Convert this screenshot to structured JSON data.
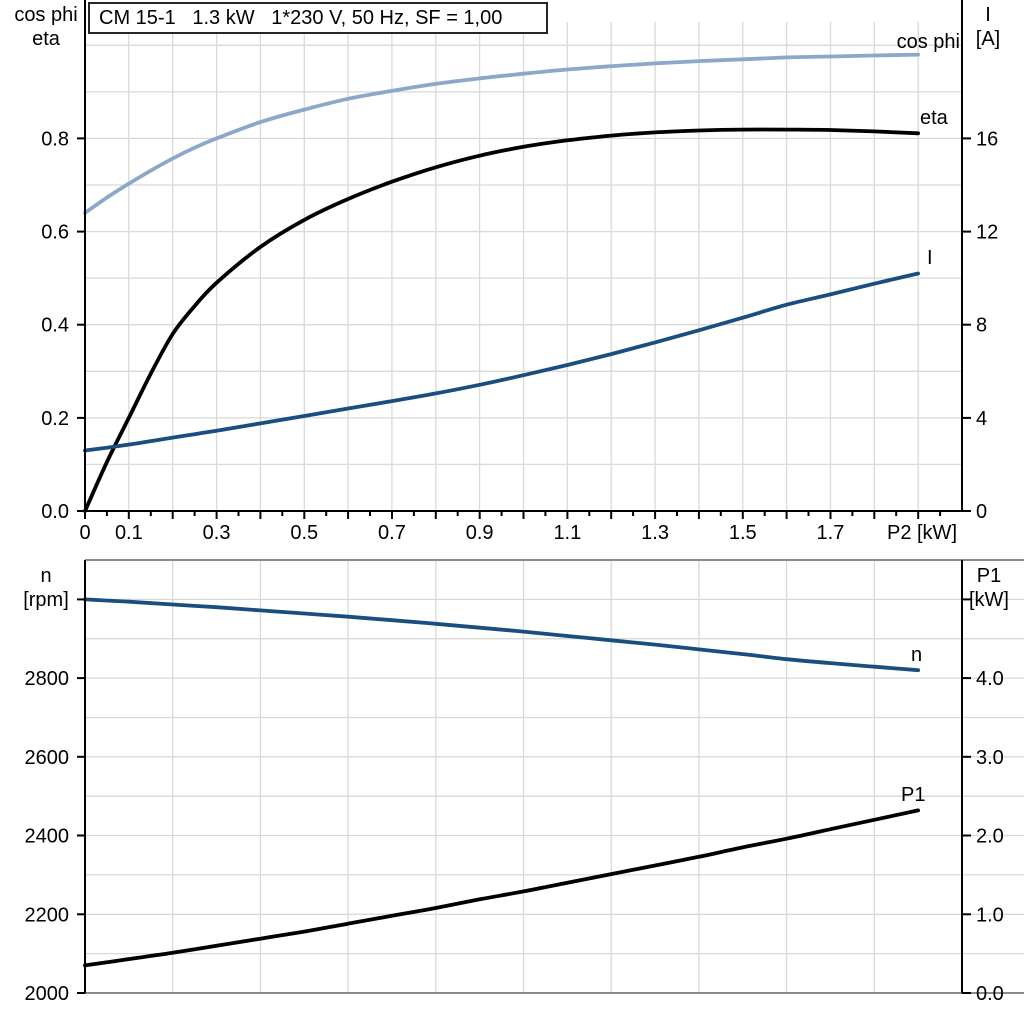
{
  "header": {
    "title": "CM 15-1   1.3 kW   1*230 V, 50 Hz, SF = 1,00"
  },
  "colors": {
    "light_blue": "#8CA8C8",
    "dark_blue": "#1B4E80",
    "black": "#000000",
    "grid": "#D9D9D9",
    "frame": "#8A8A8A"
  },
  "chart_data": [
    {
      "id": "motor-electrical",
      "type": "line",
      "title": "",
      "x_axis": {
        "label": "P2 [kW]",
        "range": [
          0,
          2.0
        ],
        "tick_values": [
          0,
          0.1,
          0.3,
          0.5,
          0.7,
          0.9,
          1.1,
          1.3,
          1.5,
          1.7
        ],
        "tick_labels": [
          "0",
          "0.1",
          "0.3",
          "0.5",
          "0.7",
          "0.9",
          "1.1",
          "1.3",
          "1.5",
          "1.7"
        ],
        "minor_tick_step": 0.05,
        "grid_step": 0.1
      },
      "y_left": {
        "label_lines": [
          "cos phi",
          "eta"
        ],
        "range": [
          0,
          1.05
        ],
        "tick_values": [
          0,
          0.2,
          0.4,
          0.6,
          0.8
        ],
        "tick_labels": [
          "0.0",
          "0.2",
          "0.4",
          "0.6",
          "0.8"
        ],
        "grid_step": 0.1
      },
      "y_right": {
        "label_lines": [
          "I",
          "[A]"
        ],
        "range": [
          0,
          21
        ],
        "tick_values": [
          0,
          4,
          8,
          12,
          16
        ],
        "tick_labels": [
          "0",
          "4",
          "8",
          "12",
          "16"
        ],
        "grid_step": 2
      },
      "x": [
        0,
        0.05,
        0.1,
        0.15,
        0.2,
        0.25,
        0.3,
        0.4,
        0.5,
        0.6,
        0.7,
        0.8,
        0.9,
        1.0,
        1.1,
        1.2,
        1.3,
        1.4,
        1.5,
        1.6,
        1.7,
        1.8,
        1.9
      ],
      "series": [
        {
          "name": "cos phi",
          "axis": "left",
          "color_key": "light_blue",
          "values": [
            0.64,
            0.673,
            0.703,
            0.731,
            0.757,
            0.78,
            0.8,
            0.835,
            0.862,
            0.885,
            0.902,
            0.917,
            0.929,
            0.939,
            0.948,
            0.955,
            0.961,
            0.966,
            0.97,
            0.974,
            0.976,
            0.978,
            0.98
          ]
        },
        {
          "name": "eta",
          "axis": "left",
          "color_key": "black",
          "values": [
            0.0,
            0.105,
            0.2,
            0.295,
            0.38,
            0.44,
            0.49,
            0.567,
            0.625,
            0.67,
            0.707,
            0.738,
            0.763,
            0.782,
            0.796,
            0.806,
            0.813,
            0.817,
            0.819,
            0.819,
            0.818,
            0.815,
            0.811
          ]
        },
        {
          "name": "I",
          "axis": "right",
          "color_key": "dark_blue",
          "values": [
            2.6,
            2.72,
            2.85,
            3.0,
            3.15,
            3.3,
            3.45,
            3.76,
            4.08,
            4.4,
            4.72,
            5.05,
            5.42,
            5.83,
            6.27,
            6.74,
            7.24,
            7.76,
            8.3,
            8.86,
            9.3,
            9.76,
            10.2
          ]
        }
      ]
    },
    {
      "id": "motor-mechanical",
      "type": "line",
      "title": "",
      "x_axis": {
        "label": "",
        "range": [
          0,
          2.0
        ],
        "tick_values": [],
        "tick_labels": [],
        "grid_step": 0.2
      },
      "y_left": {
        "label_lines": [
          "n",
          "[rpm]"
        ],
        "range": [
          2000,
          3100
        ],
        "tick_values": [
          2000,
          2200,
          2400,
          2600,
          2800,
          3000
        ],
        "tick_labels": [
          "2000",
          "2200",
          "2400",
          "2600",
          "2800",
          ""
        ],
        "grid_step": 100
      },
      "y_right": {
        "label_lines": [
          "P1",
          "[kW]"
        ],
        "range": [
          0,
          5.5
        ],
        "tick_values": [
          0,
          1,
          2,
          3,
          4,
          5
        ],
        "tick_labels": [
          "0.0",
          "1.0",
          "2.0",
          "3.0",
          "4.0",
          ""
        ],
        "grid_step": 0.5
      },
      "x": [
        0,
        0.1,
        0.2,
        0.3,
        0.4,
        0.5,
        0.6,
        0.7,
        0.8,
        0.9,
        1.0,
        1.1,
        1.2,
        1.3,
        1.4,
        1.5,
        1.6,
        1.7,
        1.8,
        1.9
      ],
      "series": [
        {
          "name": "n",
          "axis": "left",
          "color_key": "dark_blue",
          "values": [
            3000,
            2994,
            2987,
            2980,
            2972,
            2964,
            2956,
            2947,
            2938,
            2928,
            2918,
            2907,
            2896,
            2885,
            2873,
            2861,
            2848,
            2838,
            2829,
            2820
          ]
        },
        {
          "name": "P1",
          "axis": "right",
          "color_key": "black",
          "values": [
            0.35,
            0.43,
            0.51,
            0.6,
            0.69,
            0.78,
            0.88,
            0.98,
            1.08,
            1.19,
            1.29,
            1.4,
            1.51,
            1.62,
            1.73,
            1.85,
            1.96,
            2.08,
            2.2,
            2.32
          ]
        }
      ]
    }
  ]
}
